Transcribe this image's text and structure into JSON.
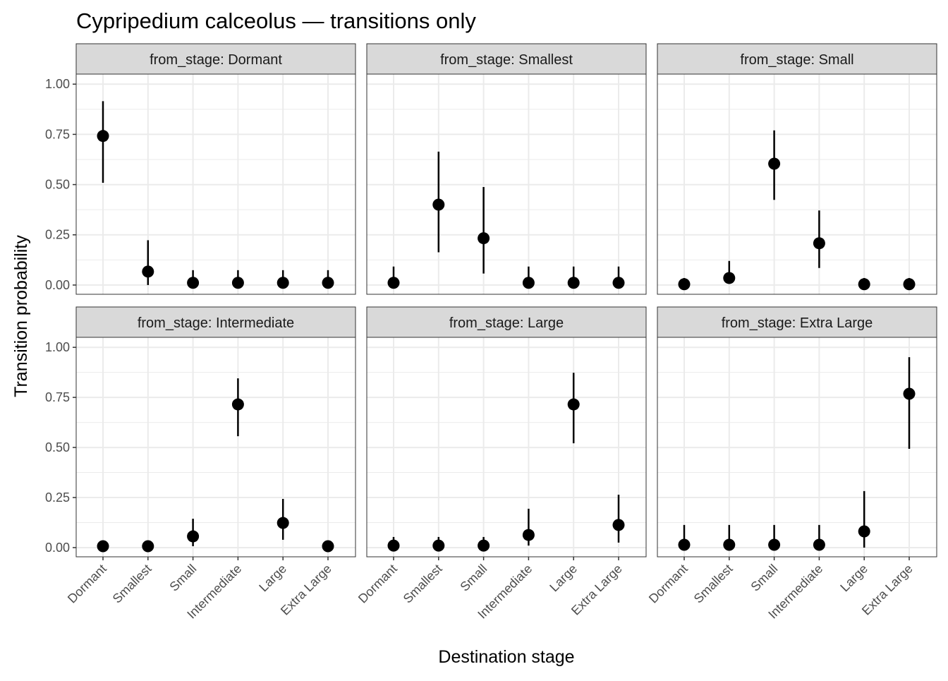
{
  "chart_data": {
    "type": "scatter",
    "subtype": "pointrange-facets",
    "title": "Cypripedium calceolus — transitions only",
    "xlabel": "Destination stage",
    "ylabel": "Transition probability",
    "ylim": [
      -0.046,
      1.05
    ],
    "yticks": [
      "0.00",
      "0.25",
      "0.50",
      "0.75",
      "1.00"
    ],
    "grid": true,
    "categories": [
      "Dormant",
      "Smallest",
      "Small",
      "Intermediate",
      "Large",
      "Extra Large"
    ],
    "facets": [
      {
        "label": "from_stage: Dormant",
        "values": [
          0.742,
          0.067,
          0.011,
          0.011,
          0.011,
          0.011
        ],
        "lower": [
          0.509,
          0.0,
          0.0,
          0.0,
          0.0,
          0.0
        ],
        "upper": [
          0.915,
          0.223,
          0.074,
          0.074,
          0.074,
          0.074
        ]
      },
      {
        "label": "from_stage: Smallest",
        "values": [
          0.011,
          0.4,
          0.233,
          0.011,
          0.011,
          0.011
        ],
        "lower": [
          0.0,
          0.163,
          0.057,
          0.0,
          0.0,
          0.0
        ],
        "upper": [
          0.092,
          0.664,
          0.488,
          0.092,
          0.092,
          0.092
        ]
      },
      {
        "label": "from_stage: Small",
        "values": [
          0.004,
          0.035,
          0.604,
          0.208,
          0.004,
          0.004
        ],
        "lower": [
          0.0,
          0.007,
          0.424,
          0.085,
          0.0,
          0.0
        ],
        "upper": [
          0.035,
          0.12,
          0.77,
          0.371,
          0.035,
          0.035
        ]
      },
      {
        "label": "from_stage: Intermediate",
        "values": [
          0.007,
          0.007,
          0.056,
          0.715,
          0.123,
          0.007
        ],
        "lower": [
          0.0,
          0.0,
          0.007,
          0.556,
          0.039,
          0.0
        ],
        "upper": [
          0.02,
          0.02,
          0.144,
          0.845,
          0.243,
          0.02
        ]
      },
      {
        "label": "from_stage: Large",
        "values": [
          0.01,
          0.01,
          0.01,
          0.063,
          0.715,
          0.113
        ],
        "lower": [
          0.0,
          0.0,
          0.0,
          0.01,
          0.521,
          0.025
        ],
        "upper": [
          0.053,
          0.053,
          0.053,
          0.194,
          0.873,
          0.264
        ]
      },
      {
        "label": "from_stage: Extra Large",
        "values": [
          0.014,
          0.014,
          0.014,
          0.014,
          0.081,
          0.768
        ],
        "lower": [
          0.0,
          0.0,
          0.0,
          0.0,
          0.0,
          0.493
        ],
        "upper": [
          0.113,
          0.113,
          0.113,
          0.113,
          0.282,
          0.951
        ]
      }
    ],
    "colors": {
      "point": "#000000",
      "strip": "#d9d9d9",
      "grid": "#ebebeb",
      "border": "#333333"
    }
  }
}
